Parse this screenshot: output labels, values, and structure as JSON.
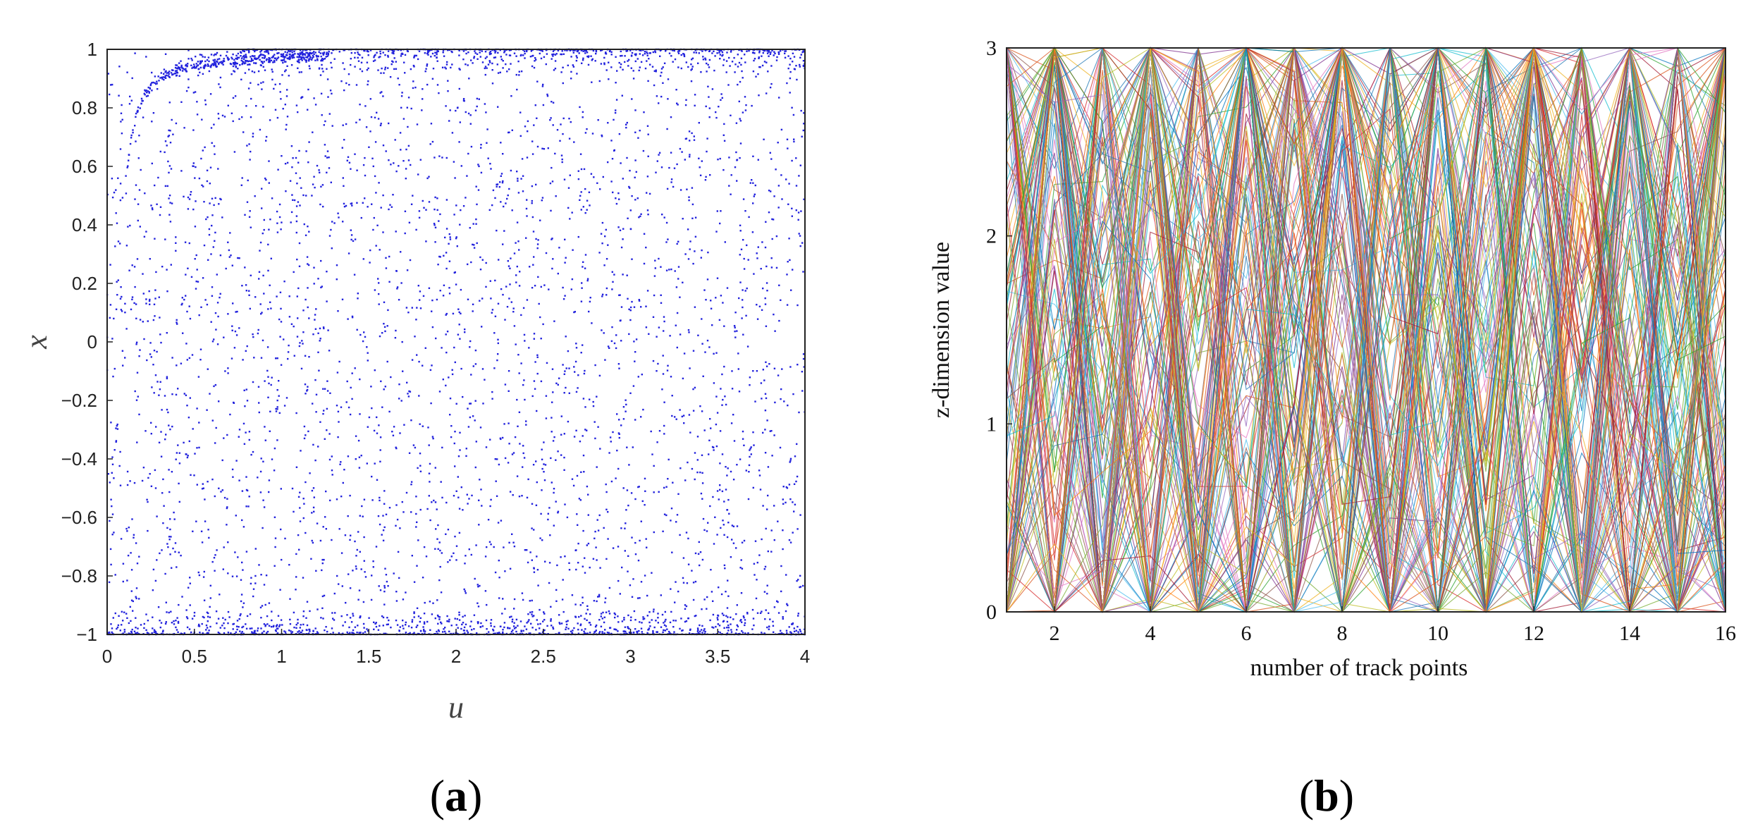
{
  "chart_data": [
    {
      "type": "scatter",
      "panel_label": "a",
      "xlabel": "u",
      "ylabel": "x",
      "xlim": [
        0,
        4
      ],
      "ylim": [
        -1,
        1
      ],
      "xticks": [
        "0",
        "0.5",
        "1",
        "1.5",
        "2",
        "2.5",
        "3",
        "3.5",
        "4"
      ],
      "xtick_values": [
        0,
        0.5,
        1,
        1.5,
        2,
        2.5,
        3,
        3.5,
        4
      ],
      "yticks": [
        "1",
        "0.8",
        "0.6",
        "0.4",
        "0.2",
        "0",
        "−0.2",
        "−0.4",
        "−0.6",
        "−0.8",
        "−1"
      ],
      "ytick_values": [
        1,
        0.8,
        0.6,
        0.4,
        0.2,
        0,
        -0.2,
        -0.4,
        -0.6,
        -0.8,
        -1
      ],
      "grid": false,
      "point_color": "#2222dd",
      "description_series": [
        {
          "x": [
            0.1,
            0.15,
            0.2,
            0.3,
            0.5,
            0.8,
            1.2,
            2.0,
            3.0,
            4.0
          ],
          "y": [
            0.55,
            0.75,
            0.85,
            0.92,
            0.96,
            0.98,
            0.99,
            0.995,
            0.998,
            1.0
          ]
        }
      ]
    },
    {
      "type": "line",
      "panel_label": "b",
      "xlabel": "number of track points",
      "ylabel": "z-dimension value",
      "xlim": [
        1,
        16
      ],
      "ylim": [
        0,
        3
      ],
      "xticks": [
        "2",
        "4",
        "6",
        "8",
        "10",
        "12",
        "14",
        "16"
      ],
      "xtick_values": [
        2,
        4,
        6,
        8,
        10,
        12,
        14,
        16
      ],
      "yticks": [
        "3",
        "2",
        "1",
        "0"
      ],
      "ytick_values": [
        3,
        2,
        1,
        0
      ],
      "grid": false,
      "x": [
        1,
        2,
        3,
        4,
        5,
        6,
        7,
        8,
        9,
        10,
        11,
        12,
        13,
        14,
        15,
        16
      ],
      "series_colors": [
        "#1f77b4",
        "#ff7f0e",
        "#2ca02c",
        "#d62728",
        "#9467bd",
        "#8c564b",
        "#e377c2",
        "#17becf",
        "#bcbd22",
        "#0072bd",
        "#d95319",
        "#edb120",
        "#7e2f8e",
        "#77ac30",
        "#4dbeee",
        "#a2142f"
      ],
      "series_count": 220
    }
  ]
}
